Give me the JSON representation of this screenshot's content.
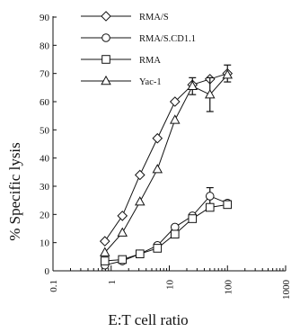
{
  "chart_data": {
    "type": "line",
    "xlabel": "E:T cell ratio",
    "ylabel": "% Specific lysis",
    "xscale": "log",
    "xlim": [
      0.1,
      1000
    ],
    "ylim": [
      0,
      90
    ],
    "yticks": [
      0,
      10,
      20,
      30,
      40,
      50,
      60,
      70,
      80,
      90
    ],
    "xticks": [
      {
        "value": 0.1,
        "label": "0.1"
      },
      {
        "value": 1,
        "label": "1"
      },
      {
        "value": 10,
        "label": "10"
      },
      {
        "value": 100,
        "label": "100"
      },
      {
        "value": 1000,
        "label": "1000"
      }
    ],
    "grid": false,
    "legend_position": "top-right",
    "series": [
      {
        "name": "RMA/S",
        "marker": "diamond",
        "x": [
          0.78,
          1.56,
          3.125,
          6.25,
          12.5,
          25,
          50,
          100
        ],
        "y": [
          10.5,
          19.5,
          34,
          47,
          60,
          66,
          68,
          70
        ],
        "err": [
          0,
          0,
          0,
          0,
          0,
          0,
          0,
          3
        ]
      },
      {
        "name": "RMA/S.CD1.1",
        "marker": "circle",
        "x": [
          0.78,
          1.56,
          3.125,
          6.25,
          12.5,
          25,
          50,
          100
        ],
        "y": [
          2,
          3.5,
          6,
          9,
          15.5,
          19.5,
          26.5,
          24
        ],
        "err": [
          0,
          0,
          0,
          0,
          0,
          0,
          3,
          0
        ]
      },
      {
        "name": "RMA",
        "marker": "square",
        "x": [
          0.78,
          1.56,
          3.125,
          6.25,
          12.5,
          25,
          50,
          100
        ],
        "y": [
          3.5,
          4,
          6,
          8,
          13,
          18.5,
          22.5,
          23.5
        ],
        "err": [
          0,
          0,
          0,
          0,
          0,
          0,
          0,
          0
        ]
      },
      {
        "name": "Yac-1",
        "marker": "triangle",
        "x": [
          0.78,
          1.56,
          3.125,
          6.25,
          12.5,
          25,
          50,
          100
        ],
        "y": [
          6.5,
          13.5,
          24.5,
          36,
          53.5,
          65.5,
          62.5,
          69.5
        ],
        "err": [
          0,
          0,
          0,
          0,
          0,
          3,
          6,
          0
        ]
      }
    ]
  }
}
